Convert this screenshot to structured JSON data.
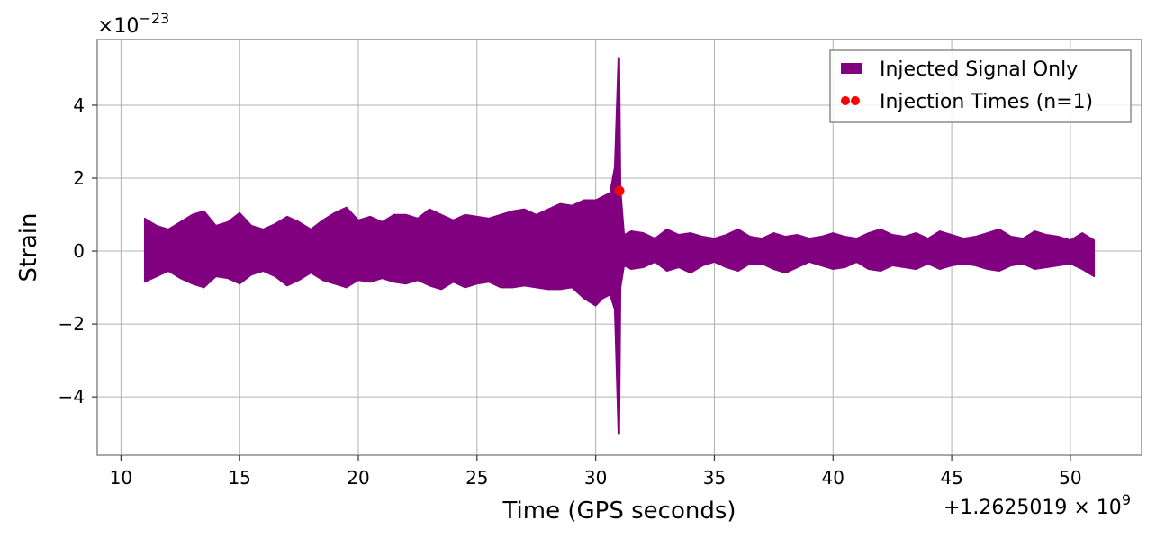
{
  "chart_data": {
    "type": "line",
    "xlabel": "Time (GPS seconds)",
    "ylabel": "Strain",
    "x_offset_label": "+1.2625019 × 10",
    "x_offset_exp": "9",
    "y_scale_label": "×10",
    "y_scale_exp": "−23",
    "xlim": [
      9,
      53
    ],
    "ylim": [
      -5.6,
      5.8
    ],
    "x_ticks": [
      {
        "value": 10,
        "label": "10"
      },
      {
        "value": 15,
        "label": "15"
      },
      {
        "value": 20,
        "label": "20"
      },
      {
        "value": 25,
        "label": "25"
      },
      {
        "value": 30,
        "label": "30"
      },
      {
        "value": 35,
        "label": "35"
      },
      {
        "value": 40,
        "label": "40"
      },
      {
        "value": 45,
        "label": "45"
      },
      {
        "value": 50,
        "label": "50"
      }
    ],
    "y_ticks": [
      {
        "value": -4,
        "label": "−4"
      },
      {
        "value": -2,
        "label": "−2"
      },
      {
        "value": 0,
        "label": "0"
      },
      {
        "value": 2,
        "label": "2"
      },
      {
        "value": 4,
        "label": "4"
      }
    ],
    "grid": true,
    "legend_position": "top-right",
    "series": [
      {
        "name": "Injected Signal Only",
        "color": "#800080",
        "style": "filled-envelope",
        "x": [
          11.0,
          11.5,
          12.0,
          12.5,
          13.0,
          13.5,
          14.0,
          14.5,
          15.0,
          15.5,
          16.0,
          16.5,
          17.0,
          17.5,
          18.0,
          18.5,
          19.0,
          19.5,
          20.0,
          20.5,
          21.0,
          21.5,
          22.0,
          22.5,
          23.0,
          23.5,
          24.0,
          24.5,
          25.0,
          25.5,
          26.0,
          26.5,
          27.0,
          27.5,
          28.0,
          28.5,
          29.0,
          29.5,
          30.0,
          30.3,
          30.6,
          30.8,
          30.95,
          31.0,
          31.05,
          31.2,
          31.5,
          32.0,
          32.5,
          33.0,
          33.5,
          34.0,
          34.5,
          35.0,
          35.5,
          36.0,
          36.5,
          37.0,
          37.5,
          38.0,
          38.5,
          39.0,
          39.5,
          40.0,
          40.5,
          41.0,
          41.5,
          42.0,
          42.5,
          43.0,
          43.5,
          44.0,
          44.5,
          45.0,
          45.5,
          46.0,
          46.5,
          47.0,
          47.5,
          48.0,
          48.5,
          49.0,
          49.5,
          50.0,
          50.5,
          51.0
        ],
        "upper": [
          0.9,
          0.7,
          0.6,
          0.8,
          1.0,
          1.1,
          0.7,
          0.8,
          1.05,
          0.7,
          0.6,
          0.75,
          0.95,
          0.8,
          0.6,
          0.85,
          1.05,
          1.2,
          0.85,
          0.95,
          0.8,
          1.0,
          1.0,
          0.9,
          1.15,
          1.0,
          0.85,
          1.0,
          0.95,
          0.9,
          1.0,
          1.1,
          1.15,
          1.0,
          1.15,
          1.3,
          1.25,
          1.4,
          1.4,
          1.5,
          1.6,
          2.3,
          5.3,
          5.3,
          1.7,
          0.45,
          0.55,
          0.5,
          0.35,
          0.6,
          0.45,
          0.5,
          0.4,
          0.35,
          0.45,
          0.6,
          0.4,
          0.35,
          0.5,
          0.4,
          0.45,
          0.35,
          0.4,
          0.5,
          0.4,
          0.35,
          0.5,
          0.6,
          0.45,
          0.4,
          0.5,
          0.35,
          0.55,
          0.45,
          0.35,
          0.4,
          0.5,
          0.6,
          0.4,
          0.35,
          0.55,
          0.45,
          0.4,
          0.3,
          0.5,
          0.3
        ],
        "lower": [
          -0.85,
          -0.7,
          -0.55,
          -0.75,
          -0.9,
          -1.0,
          -0.7,
          -0.75,
          -0.9,
          -0.65,
          -0.55,
          -0.7,
          -0.95,
          -0.8,
          -0.6,
          -0.8,
          -0.9,
          -1.0,
          -0.8,
          -0.85,
          -0.75,
          -0.85,
          -0.9,
          -0.8,
          -0.95,
          -1.05,
          -0.85,
          -1.0,
          -0.9,
          -0.85,
          -1.0,
          -1.0,
          -0.95,
          -1.0,
          -1.05,
          -1.05,
          -1.0,
          -1.3,
          -1.5,
          -1.3,
          -1.2,
          -1.6,
          -5.0,
          -5.0,
          -1.0,
          -0.4,
          -0.5,
          -0.45,
          -0.3,
          -0.55,
          -0.45,
          -0.6,
          -0.4,
          -0.3,
          -0.45,
          -0.55,
          -0.35,
          -0.35,
          -0.5,
          -0.6,
          -0.45,
          -0.3,
          -0.4,
          -0.5,
          -0.45,
          -0.3,
          -0.5,
          -0.55,
          -0.4,
          -0.45,
          -0.5,
          -0.35,
          -0.5,
          -0.4,
          -0.35,
          -0.4,
          -0.5,
          -0.55,
          -0.4,
          -0.35,
          -0.5,
          -0.45,
          -0.4,
          -0.35,
          -0.5,
          -0.7
        ]
      },
      {
        "name": "Injection Times (n=1)",
        "color": "#ff0000",
        "style": "markers",
        "x": [
          31.0
        ],
        "y": [
          1.65
        ]
      }
    ]
  }
}
